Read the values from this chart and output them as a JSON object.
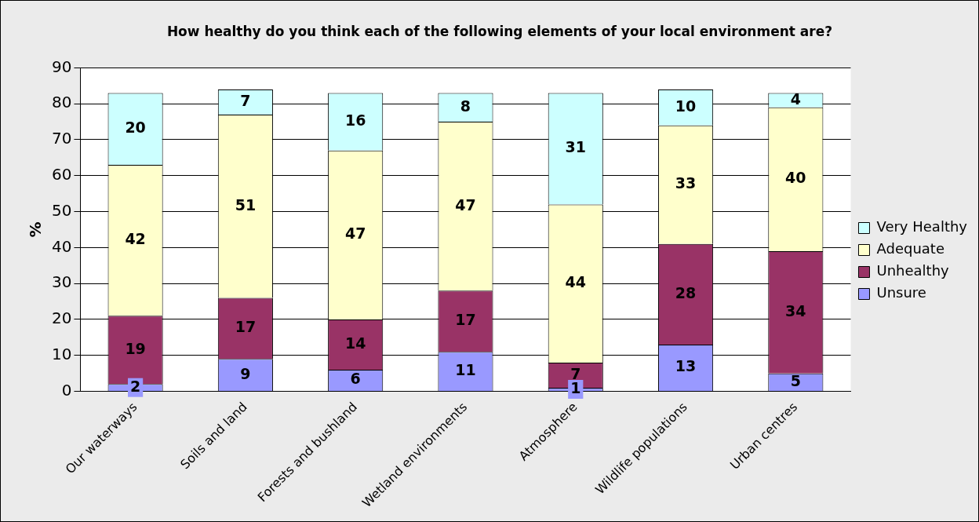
{
  "chart_data": {
    "type": "bar",
    "title": "How healthy do you think each of the following elements of your local environment are?",
    "ylabel": "%",
    "categories": [
      "Our waterways",
      "Soils and land",
      "Forests and bushland",
      "Wetland environments",
      "Atmosphere",
      "Wildlife populations",
      "Urban centres"
    ],
    "stacked": true,
    "ylim": [
      0,
      90
    ],
    "yticks": [
      0,
      10,
      20,
      30,
      40,
      50,
      60,
      70,
      80,
      90
    ],
    "grid": "y",
    "legend": "right",
    "data_labels": true,
    "series": [
      {
        "name": "Unsure",
        "color": "#9999ff",
        "values": [
          2,
          9,
          6,
          11,
          1,
          13,
          5
        ]
      },
      {
        "name": "Unhealthy",
        "color": "#993366",
        "values": [
          19,
          17,
          14,
          17,
          7,
          28,
          34
        ]
      },
      {
        "name": "Adequate",
        "color": "#ffffcc",
        "values": [
          42,
          51,
          47,
          47,
          44,
          33,
          40
        ]
      },
      {
        "name": "Very Healthy",
        "color": "#ccffff",
        "values": [
          20,
          7,
          16,
          8,
          31,
          10,
          4
        ]
      }
    ]
  }
}
